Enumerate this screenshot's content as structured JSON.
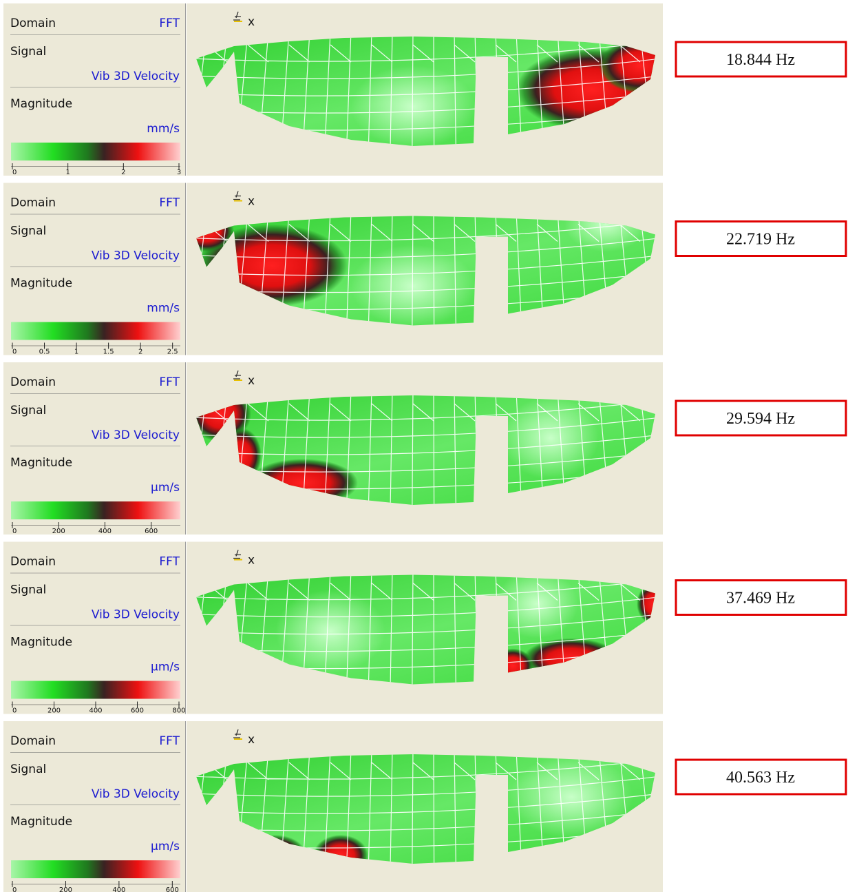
{
  "panels": [
    {
      "domain_label": "Domain",
      "domain": "FFT",
      "signal_label": "Signal",
      "signal": "Vib 3D Velocity",
      "magnitude_label": "Magnitude",
      "unit": "mm/s",
      "scale_range": [
        0,
        3
      ],
      "scale_ticks": [
        0,
        1,
        2,
        3
      ],
      "axis_label": "x",
      "frequency": "18.844 Hz"
    },
    {
      "domain_label": "Domain",
      "domain": "FFT",
      "signal_label": "Signal",
      "signal": "Vib 3D Velocity",
      "magnitude_label": "Magnitude",
      "unit": "mm/s",
      "scale_range": [
        0,
        2.6
      ],
      "scale_ticks": [
        0,
        0.5,
        1,
        1.5,
        2,
        2.5
      ],
      "axis_label": "x",
      "frequency": "22.719 Hz"
    },
    {
      "domain_label": "Domain",
      "domain": "FFT",
      "signal_label": "Signal",
      "signal": "Vib 3D Velocity",
      "magnitude_label": "Magnitude",
      "unit": "µm/s",
      "scale_range": [
        0,
        720
      ],
      "scale_ticks": [
        0,
        200,
        400,
        600
      ],
      "axis_label": "x",
      "frequency": "29.594 Hz"
    },
    {
      "domain_label": "Domain",
      "domain": "FFT",
      "signal_label": "Signal",
      "signal": "Vib 3D Velocity",
      "magnitude_label": "Magnitude",
      "unit": "µm/s",
      "scale_range": [
        0,
        800
      ],
      "scale_ticks": [
        0,
        200,
        400,
        600,
        800
      ],
      "axis_label": "x",
      "frequency": "37.469 Hz"
    },
    {
      "domain_label": "Domain",
      "domain": "FFT",
      "signal_label": "Signal",
      "signal": "Vib 3D Velocity",
      "magnitude_label": "Magnitude",
      "unit": "µm/s",
      "scale_range": [
        0,
        625
      ],
      "scale_ticks": [
        0,
        200,
        400,
        600
      ],
      "axis_label": "x",
      "frequency": "40.563 Hz"
    }
  ]
}
